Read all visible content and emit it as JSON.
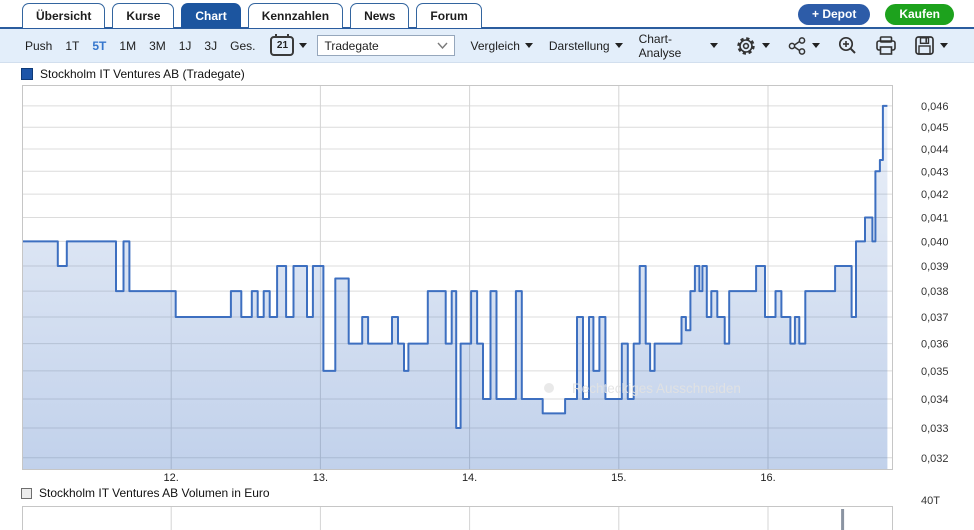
{
  "tabs": [
    {
      "label": "Übersicht",
      "active": false
    },
    {
      "label": "Kurse",
      "active": false
    },
    {
      "label": "Chart",
      "active": true
    },
    {
      "label": "Kennzahlen",
      "active": false
    },
    {
      "label": "News",
      "active": false
    },
    {
      "label": "Forum",
      "active": false
    }
  ],
  "actions": {
    "depot": "+ Depot",
    "kaufen": "Kaufen"
  },
  "toolbar": {
    "push": "Push",
    "ranges": [
      "1T",
      "5T",
      "1M",
      "3M",
      "1J",
      "3J",
      "Ges."
    ],
    "selected_range": "5T",
    "calendar_day": "21",
    "exchange_select_value": "Tradegate",
    "menus": [
      "Vergleich",
      "Darstellung",
      "Chart-Analyse"
    ],
    "icon_names": [
      "gear-icon",
      "indicator-nodes-icon",
      "zoom-in-icon",
      "print-icon",
      "save-icon"
    ]
  },
  "watermark": {
    "text": "Rechteckiges Ausschneiden"
  },
  "chart_data": [
    {
      "type": "area",
      "title": "Stockholm IT Ventures AB (Tradegate)",
      "legend_color": "#1d55a8",
      "line_color": "#3d6fc0",
      "grid": true,
      "legend_position": "top-left",
      "y_scale": "log",
      "y_range": [
        0.0316,
        0.047
      ],
      "y_ticks": [
        0.032,
        0.033,
        0.034,
        0.035,
        0.036,
        0.037,
        0.038,
        0.039,
        0.04,
        0.041,
        0.042,
        0.043,
        0.044,
        0.045,
        0.046
      ],
      "y_tick_labels": [
        "0,032",
        "0,033",
        "0,034",
        "0,035",
        "0,036",
        "0,037",
        "0,038",
        "0,039",
        "0,040",
        "0,041",
        "0,042",
        "0,043",
        "0,044",
        "0,045",
        "0,046"
      ],
      "x_range": [
        0,
        5.8
      ],
      "x_ticks": [
        {
          "x": 1,
          "label": "12."
        },
        {
          "x": 2,
          "label": "13."
        },
        {
          "x": 3,
          "label": "14."
        },
        {
          "x": 4,
          "label": "15."
        },
        {
          "x": 5,
          "label": "16."
        }
      ],
      "series": [
        {
          "name": "Stockholm IT Ventures AB (Tradegate)",
          "step": true,
          "points": [
            [
              0.0,
              0.04
            ],
            [
              0.24,
              0.039
            ],
            [
              0.3,
              0.04
            ],
            [
              0.63,
              0.038
            ],
            [
              0.68,
              0.04
            ],
            [
              0.72,
              0.038
            ],
            [
              1.03,
              0.037
            ],
            [
              1.4,
              0.038
            ],
            [
              1.47,
              0.037
            ],
            [
              1.54,
              0.038
            ],
            [
              1.58,
              0.037
            ],
            [
              1.62,
              0.038
            ],
            [
              1.66,
              0.037
            ],
            [
              1.71,
              0.039
            ],
            [
              1.77,
              0.037
            ],
            [
              1.82,
              0.039
            ],
            [
              1.91,
              0.037
            ],
            [
              1.95,
              0.039
            ],
            [
              2.02,
              0.035
            ],
            [
              2.1,
              0.0385
            ],
            [
              2.19,
              0.036
            ],
            [
              2.28,
              0.037
            ],
            [
              2.32,
              0.036
            ],
            [
              2.48,
              0.037
            ],
            [
              2.52,
              0.036
            ],
            [
              2.56,
              0.035
            ],
            [
              2.59,
              0.036
            ],
            [
              2.72,
              0.038
            ],
            [
              2.84,
              0.036
            ],
            [
              2.88,
              0.038
            ],
            [
              2.91,
              0.033
            ],
            [
              2.94,
              0.036
            ],
            [
              3.01,
              0.038
            ],
            [
              3.05,
              0.036
            ],
            [
              3.09,
              0.034
            ],
            [
              3.14,
              0.038
            ],
            [
              3.18,
              0.034
            ],
            [
              3.31,
              0.038
            ],
            [
              3.35,
              0.034
            ],
            [
              3.49,
              0.0335
            ],
            [
              3.64,
              0.034
            ],
            [
              3.72,
              0.037
            ],
            [
              3.76,
              0.034
            ],
            [
              3.8,
              0.037
            ],
            [
              3.83,
              0.035
            ],
            [
              3.87,
              0.037
            ],
            [
              3.91,
              0.034
            ],
            [
              4.02,
              0.036
            ],
            [
              4.06,
              0.034
            ],
            [
              4.1,
              0.036
            ],
            [
              4.14,
              0.039
            ],
            [
              4.18,
              0.036
            ],
            [
              4.21,
              0.035
            ],
            [
              4.24,
              0.036
            ],
            [
              4.42,
              0.037
            ],
            [
              4.45,
              0.0365
            ],
            [
              4.48,
              0.038
            ],
            [
              4.51,
              0.039
            ],
            [
              4.54,
              0.038
            ],
            [
              4.56,
              0.039
            ],
            [
              4.59,
              0.037
            ],
            [
              4.62,
              0.038
            ],
            [
              4.66,
              0.037
            ],
            [
              4.71,
              0.036
            ],
            [
              4.74,
              0.038
            ],
            [
              4.92,
              0.039
            ],
            [
              4.98,
              0.037
            ],
            [
              5.05,
              0.038
            ],
            [
              5.09,
              0.037
            ],
            [
              5.15,
              0.036
            ],
            [
              5.18,
              0.037
            ],
            [
              5.21,
              0.036
            ],
            [
              5.25,
              0.038
            ],
            [
              5.45,
              0.039
            ],
            [
              5.56,
              0.037
            ],
            [
              5.59,
              0.04
            ],
            [
              5.65,
              0.041
            ],
            [
              5.7,
              0.04
            ],
            [
              5.72,
              0.043
            ],
            [
              5.75,
              0.0435
            ],
            [
              5.77,
              0.046
            ]
          ]
        }
      ]
    },
    {
      "type": "bar",
      "title": "Stockholm IT Ventures AB Volumen in Euro",
      "legend_color": "#ececec",
      "y_axis_top_label": "40T",
      "clipped_at_bottom": true,
      "bars": [
        {
          "x": 5.5
        }
      ]
    }
  ]
}
